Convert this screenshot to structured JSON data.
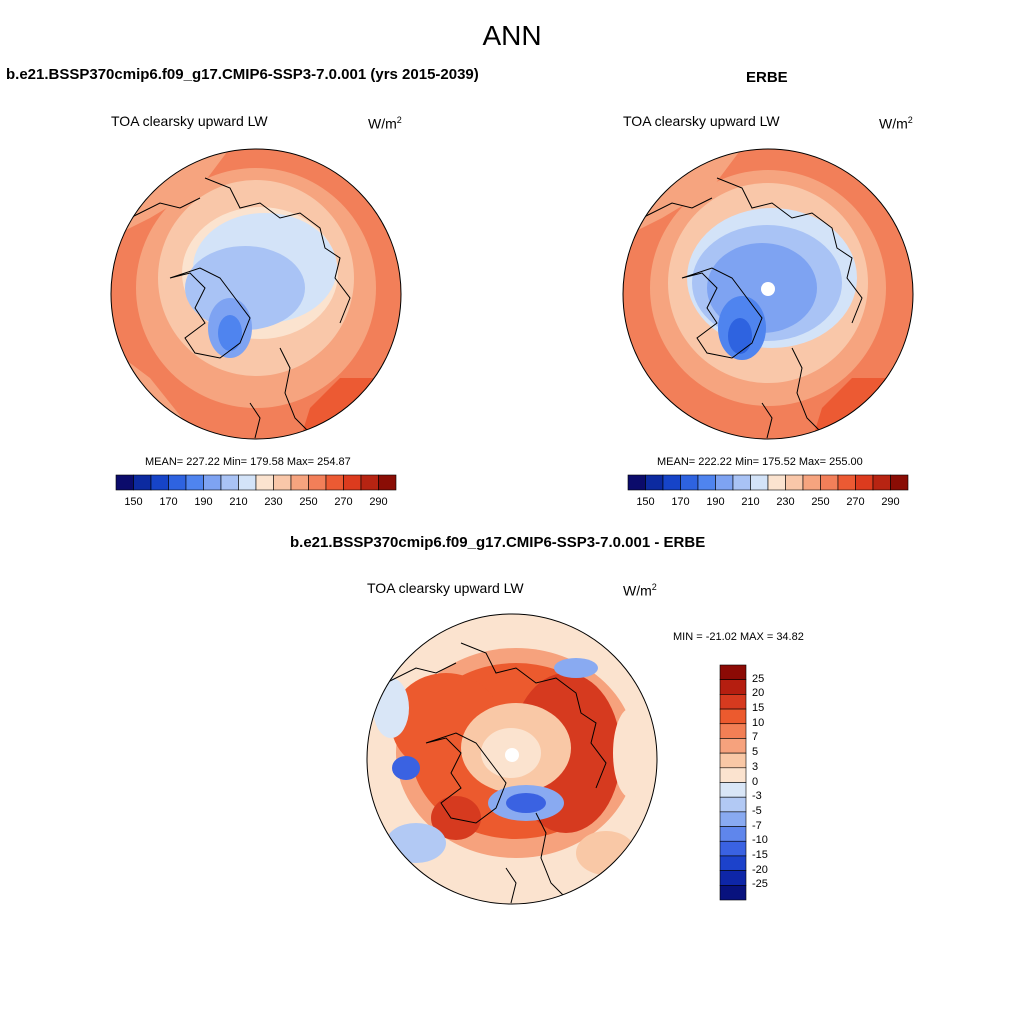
{
  "main_title": "ANN",
  "panels": {
    "model": {
      "title": "b.e21.BSSP370cmip6.f09_g17.CMIP6-SSP3-7.0.001 (yrs 2015-2039)",
      "variable": "TOA clearsky upward LW",
      "units_base": "W/m",
      "units_exp": "2",
      "stats": "MEAN= 227.22  Min= 179.58  Max= 254.87"
    },
    "obs": {
      "title": "ERBE",
      "variable": "TOA clearsky upward LW",
      "units_base": "W/m",
      "units_exp": "2",
      "stats": "MEAN= 222.22  Min= 175.52  Max= 255.00"
    },
    "diff": {
      "title": "b.e21.BSSP370cmip6.f09_g17.CMIP6-SSP3-7.0.001 - ERBE",
      "variable": "TOA clearsky upward LW",
      "units_base": "W/m",
      "units_exp": "2",
      "stats": "MIN = -21.02 MAX =  34.82"
    }
  },
  "colorbar_abs": {
    "colors": [
      "#0b0b6b",
      "#0c2aa0",
      "#1644c8",
      "#2e63e0",
      "#4f84ef",
      "#7ea3f2",
      "#a9c3f5",
      "#d3e3f8",
      "#fbe3cf",
      "#f9c7a9",
      "#f6a47f",
      "#f27f59",
      "#ec5a33",
      "#dc3b1e",
      "#b72412",
      "#8a0d05"
    ],
    "tick_labels": [
      "150",
      "170",
      "190",
      "210",
      "230",
      "250",
      "270",
      "290"
    ]
  },
  "colorbar_diff": {
    "colors": [
      "#8c0a05",
      "#b51e10",
      "#d63a1f",
      "#ec5a2e",
      "#f27f55",
      "#f6a27d",
      "#f9c8a6",
      "#fbe3cf",
      "#d9e6f7",
      "#b2c9f4",
      "#89aaf1",
      "#5f86ec",
      "#3a62e2",
      "#1c42cb",
      "#0e26a8",
      "#08127e"
    ],
    "tick_labels": [
      "25",
      "20",
      "15",
      "10",
      "7",
      "5",
      "3",
      "0",
      "-3",
      "-5",
      "-7",
      "-10",
      "-15",
      "-20",
      "-25"
    ]
  }
}
